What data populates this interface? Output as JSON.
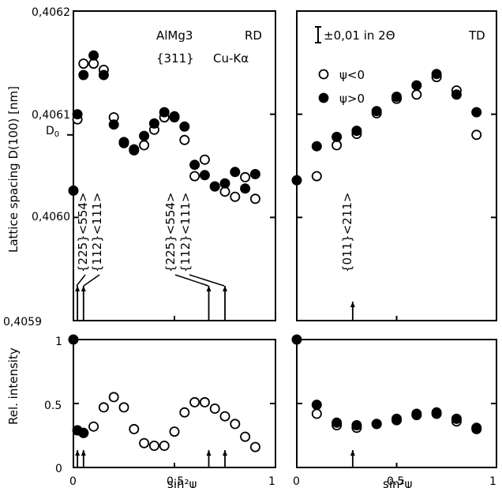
{
  "chart_data": [
    {
      "type": "scatter",
      "panel": "RD lattice spacing",
      "ylabel": "Lattice spacing D(100) [nm]",
      "xlim": [
        0,
        1
      ],
      "ylim": [
        0.4059,
        0.4062
      ],
      "yticks": [
        "0,4059",
        "0,4060",
        "0,4061",
        "0,4062"
      ],
      "y_ref_label": "D0",
      "y_ref_value": 0.40608,
      "annotations": [
        "AlMg3",
        "RD",
        "{311}",
        "Cu-Kα",
        "{225}<554>",
        "{112}<111>",
        "{225}<554>",
        "{112}<111>"
      ],
      "series": [
        {
          "name": "ψ<0",
          "x": [
            0.02,
            0.05,
            0.1,
            0.15,
            0.2,
            0.25,
            0.3,
            0.35,
            0.4,
            0.45,
            0.5,
            0.55,
            0.6,
            0.65,
            0.7,
            0.75,
            0.8,
            0.85,
            0.9
          ],
          "y": [
            0.406095,
            0.406149,
            0.406149,
            0.406143,
            0.406097,
            0.406072,
            0.406065,
            0.40607,
            0.406085,
            0.406097,
            0.406097,
            0.406075,
            0.40604,
            0.406056,
            0.40603,
            0.406025,
            0.40602,
            0.406039,
            0.406018
          ]
        },
        {
          "name": "ψ>0",
          "x": [
            0,
            0.02,
            0.05,
            0.1,
            0.15,
            0.2,
            0.25,
            0.3,
            0.35,
            0.4,
            0.45,
            0.5,
            0.55,
            0.6,
            0.65,
            0.7,
            0.75,
            0.8,
            0.85,
            0.9
          ],
          "y": [
            0.406026,
            0.4061,
            0.406138,
            0.406157,
            0.406138,
            0.40609,
            0.406073,
            0.406066,
            0.406079,
            0.406091,
            0.406102,
            0.406098,
            0.406088,
            0.406051,
            0.406041,
            0.40603,
            0.406033,
            0.406044,
            0.406028,
            0.406042
          ]
        }
      ]
    },
    {
      "type": "scatter",
      "panel": "TD lattice spacing",
      "xlim": [
        0,
        1
      ],
      "ylim": [
        0.4059,
        0.4062
      ],
      "annotations": [
        "TD",
        "±0,01 in 2Θ",
        "ψ<0",
        "ψ>0",
        "{011}<211>"
      ],
      "series": [
        {
          "name": "ψ<0",
          "x": [
            0,
            0.1,
            0.2,
            0.3,
            0.4,
            0.5,
            0.6,
            0.7,
            0.8,
            0.9
          ],
          "y": [
            0.406036,
            0.40604,
            0.40607,
            0.406081,
            0.406101,
            0.406115,
            0.406119,
            0.406136,
            0.406123,
            0.40608
          ],
          "hidden": [
            true,
            false,
            false,
            false,
            false,
            false,
            false,
            false,
            false,
            false
          ]
        },
        {
          "name": "ψ>0",
          "x": [
            0,
            0.1,
            0.2,
            0.3,
            0.4,
            0.5,
            0.6,
            0.7,
            0.8,
            0.9
          ],
          "y": [
            0.406036,
            0.406069,
            0.406078,
            0.406084,
            0.406103,
            0.406117,
            0.406128,
            0.406139,
            0.406119,
            0.406102
          ]
        }
      ]
    },
    {
      "type": "scatter",
      "panel": "RD relative intensity",
      "ylabel": "Rel. intensity",
      "xlabel": "sin²ψ",
      "xlim": [
        0,
        1
      ],
      "ylim": [
        0,
        1
      ],
      "xticks": [
        "0",
        "0.5",
        "1"
      ],
      "yticks": [
        "0",
        "0.5",
        "1"
      ],
      "series": [
        {
          "name": "ψ<0",
          "x": [
            0.02,
            0.05,
            0.1,
            0.15,
            0.2,
            0.25,
            0.3,
            0.35,
            0.4,
            0.45,
            0.5,
            0.55,
            0.6,
            0.65,
            0.7,
            0.75,
            0.8,
            0.85,
            0.9
          ],
          "y": [
            0.29,
            0.27,
            0.32,
            0.47,
            0.55,
            0.47,
            0.3,
            0.19,
            0.17,
            0.17,
            0.28,
            0.43,
            0.51,
            0.51,
            0.46,
            0.4,
            0.34,
            0.24,
            0.16
          ]
        },
        {
          "name": "ψ>0",
          "x": [
            0,
            0.02,
            0.05
          ],
          "y": [
            1.0,
            0.29,
            0.27
          ]
        }
      ]
    },
    {
      "type": "scatter",
      "panel": "TD relative intensity",
      "xlabel": "sin²ψ",
      "xlim": [
        0,
        1
      ],
      "ylim": [
        0,
        1
      ],
      "xticks": [
        "0",
        "0.5",
        "1"
      ],
      "series": [
        {
          "name": "ψ<0",
          "x": [
            0.1,
            0.2,
            0.3,
            0.4,
            0.5,
            0.6,
            0.7,
            0.8,
            0.9
          ],
          "y": [
            0.42,
            0.33,
            0.31,
            0.34,
            0.37,
            0.41,
            0.42,
            0.36,
            0.3
          ]
        },
        {
          "name": "ψ>0",
          "x": [
            0,
            0.1,
            0.2,
            0.3,
            0.4,
            0.5,
            0.6,
            0.7,
            0.8,
            0.9
          ],
          "y": [
            1.0,
            0.49,
            0.35,
            0.33,
            0.34,
            0.38,
            0.42,
            0.43,
            0.38,
            0.31
          ]
        }
      ]
    }
  ]
}
